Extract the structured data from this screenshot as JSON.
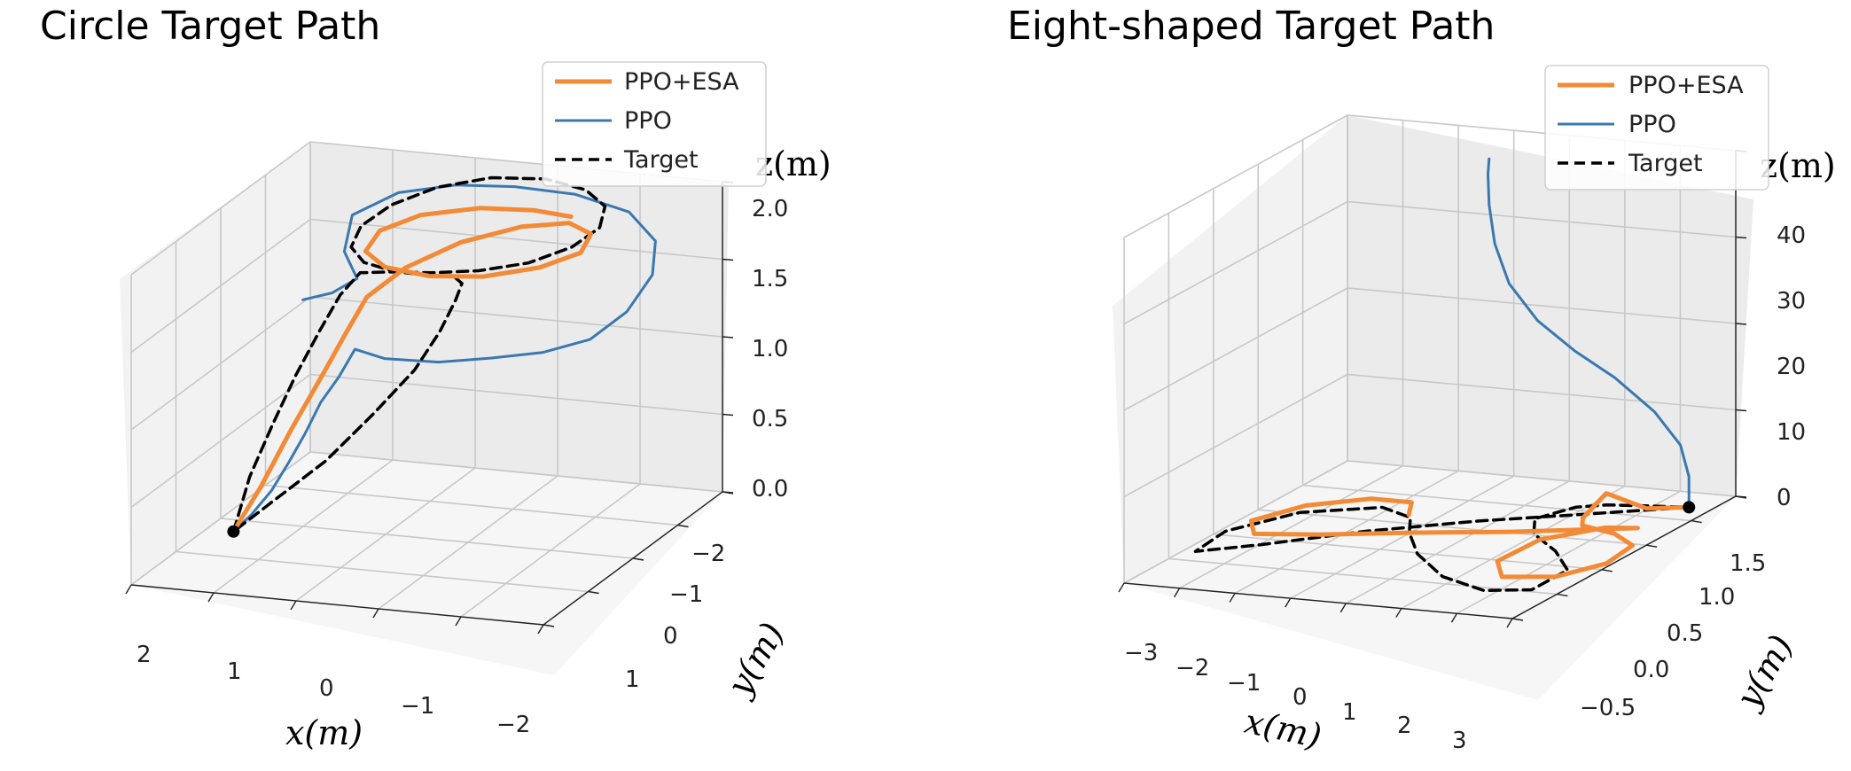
{
  "colors": {
    "ppo_esa": "#f28a36",
    "ppo": "#3a78b0",
    "target": "#000000",
    "pane_left": "#f2f2f2",
    "pane_right": "#ebebeb",
    "pane_floor": "#f6f6f6",
    "grid": "#c8c8c8"
  },
  "chart_data": [
    {
      "type": "line",
      "subtype": "3d-line",
      "title": "Circle Target Path",
      "xlabel": "x(m)",
      "ylabel": "y(m)",
      "zlabel": "z(m)",
      "x_ticks": [
        "2",
        "1",
        "0",
        "−1",
        "−2"
      ],
      "y_ticks": [
        "−2",
        "−1",
        "0",
        "1"
      ],
      "z_ticks": [
        "0.0",
        "0.5",
        "1.0",
        "1.5",
        "2.0"
      ],
      "xlim": [
        2.3,
        -2.3
      ],
      "ylim": [
        -2.2,
        1.6
      ],
      "zlim": [
        0.0,
        2.0
      ],
      "legend": {
        "position": "top-right",
        "entries": [
          "PPO+ESA",
          "PPO",
          "Target"
        ]
      },
      "grid": true,
      "start_point": {
        "x": 2.0,
        "y": 0.0,
        "z": 0.0
      },
      "series": [
        {
          "name": "PPO+ESA",
          "points": [
            [
              2.0,
              0.0,
              0.0
            ],
            [
              1.7,
              0.0,
              0.3
            ],
            [
              1.35,
              0.0,
              0.7
            ],
            [
              1.05,
              -0.1,
              1.05
            ],
            [
              0.85,
              -0.2,
              1.3
            ],
            [
              0.75,
              -0.45,
              1.48
            ],
            [
              0.55,
              -0.9,
              1.58
            ],
            [
              0.2,
              -1.4,
              1.65
            ],
            [
              -0.3,
              -1.75,
              1.7
            ],
            [
              -0.8,
              -1.8,
              1.74
            ],
            [
              -1.2,
              -1.5,
              1.76
            ],
            [
              -1.35,
              -1.0,
              1.76
            ],
            [
              -1.1,
              -0.6,
              1.74
            ],
            [
              -0.6,
              -0.35,
              1.71
            ],
            [
              0.0,
              -0.35,
              1.68
            ],
            [
              0.6,
              -0.55,
              1.66
            ],
            [
              1.0,
              -0.9,
              1.66
            ],
            [
              1.05,
              -1.3,
              1.7
            ],
            [
              0.75,
              -1.6,
              1.75
            ],
            [
              0.2,
              -1.8,
              1.78
            ],
            [
              -0.4,
              -1.8,
              1.8
            ],
            [
              -0.9,
              -1.65,
              1.82
            ]
          ]
        },
        {
          "name": "PPO",
          "points": [
            [
              2.0,
              0.0,
              0.0
            ],
            [
              1.8,
              0.0,
              0.12
            ],
            [
              1.55,
              0.05,
              0.3
            ],
            [
              1.35,
              0.05,
              0.5
            ],
            [
              1.15,
              0.1,
              0.7
            ],
            [
              1.0,
              0.05,
              0.9
            ],
            [
              0.85,
              -0.05,
              1.05
            ],
            [
              0.75,
              -0.2,
              1.2
            ],
            [
              0.5,
              -0.35,
              1.12
            ],
            [
              0.0,
              -0.55,
              1.08
            ],
            [
              -0.5,
              -0.7,
              1.1
            ],
            [
              -1.0,
              -0.85,
              1.13
            ],
            [
              -1.4,
              -1.1,
              1.18
            ],
            [
              -1.6,
              -1.5,
              1.28
            ],
            [
              -1.65,
              -1.95,
              1.42
            ],
            [
              -1.5,
              -2.3,
              1.55
            ],
            [
              -1.1,
              -2.5,
              1.67
            ],
            [
              -0.5,
              -2.5,
              1.75
            ],
            [
              0.1,
              -2.35,
              1.8
            ],
            [
              0.6,
              -2.05,
              1.85
            ],
            [
              1.0,
              -1.6,
              1.88
            ],
            [
              1.2,
              -1.0,
              1.86
            ],
            [
              1.0,
              -0.45,
              1.76
            ],
            [
              0.7,
              -0.15,
              1.67
            ],
            [
              0.9,
              0.0,
              1.6
            ],
            [
              1.2,
              0.05,
              1.55
            ]
          ]
        },
        {
          "name": "Target",
          "points": [
            [
              2.0,
              0.0,
              0.0
            ],
            [
              1.95,
              -0.25,
              0.3
            ],
            [
              1.8,
              -0.45,
              0.6
            ],
            [
              1.6,
              -0.55,
              0.9
            ],
            [
              1.35,
              -0.6,
              1.2
            ],
            [
              1.1,
              -0.55,
              1.45
            ],
            [
              0.85,
              -0.5,
              1.62
            ],
            [
              0.45,
              -0.45,
              1.66
            ],
            [
              0.0,
              -0.4,
              1.69
            ],
            [
              -0.5,
              -0.45,
              1.72
            ],
            [
              -0.95,
              -0.65,
              1.75
            ],
            [
              -1.25,
              -1.0,
              1.79
            ],
            [
              -1.35,
              -1.4,
              1.83
            ],
            [
              -1.2,
              -1.8,
              1.87
            ],
            [
              -0.85,
              -2.05,
              1.9
            ],
            [
              -0.35,
              -2.15,
              1.92
            ],
            [
              0.2,
              -2.05,
              1.92
            ],
            [
              0.65,
              -1.75,
              1.9
            ],
            [
              0.95,
              -1.35,
              1.86
            ],
            [
              1.05,
              -0.9,
              1.82
            ],
            [
              0.95,
              -0.5,
              1.78
            ],
            [
              0.7,
              -0.3,
              1.74
            ],
            [
              0.35,
              -0.3,
              1.7
            ],
            [
              0.05,
              -0.45,
              1.66
            ],
            [
              -0.1,
              -0.7,
              1.6
            ],
            [
              -0.05,
              -0.95,
              1.5
            ],
            [
              0.1,
              -1.1,
              1.35
            ],
            [
              0.25,
              -1.05,
              1.15
            ],
            [
              0.4,
              -0.8,
              0.95
            ],
            [
              0.7,
              -0.5,
              0.72
            ],
            [
              1.1,
              -0.25,
              0.45
            ],
            [
              1.6,
              -0.08,
              0.2
            ],
            [
              2.0,
              0.0,
              0.0
            ]
          ]
        }
      ]
    },
    {
      "type": "line",
      "subtype": "3d-line",
      "title": "Eight-shaped Target Path",
      "xlabel": "x(m)",
      "ylabel": "y(m)",
      "zlabel": "z(m)",
      "x_ticks": [
        "−3",
        "−2",
        "−1",
        "0",
        "1",
        "2",
        "3"
      ],
      "y_ticks": [
        "1.5",
        "1.0",
        "0.5",
        "0.0",
        "−0.5"
      ],
      "z_ticks": [
        "0",
        "10",
        "20",
        "30",
        "40"
      ],
      "xlim": [
        -3.4,
        3.4
      ],
      "ylim": [
        1.9,
        -0.9
      ],
      "zlim": [
        0,
        45
      ],
      "legend": {
        "position": "top-right",
        "entries": [
          "PPO+ESA",
          "PPO",
          "Target"
        ]
      },
      "grid": true,
      "start_point": {
        "x": 3.0,
        "y": 1.6,
        "z": 0
      },
      "series": [
        {
          "name": "PPO+ESA",
          "points": [
            [
              3.0,
              1.6,
              0
            ],
            [
              2.4,
              1.5,
              0
            ],
            [
              1.9,
              1.35,
              2.5
            ],
            [
              1.7,
              1.2,
              0
            ],
            [
              1.9,
              1.05,
              0
            ],
            [
              2.6,
              0.95,
              0
            ],
            [
              3.2,
              0.75,
              0
            ],
            [
              3.3,
              0.35,
              0
            ],
            [
              2.9,
              0.0,
              0
            ],
            [
              2.1,
              -0.1,
              0
            ],
            [
              1.6,
              0.2,
              0
            ],
            [
              1.65,
              0.7,
              0
            ],
            [
              2.3,
              1.05,
              0
            ],
            [
              2.8,
              1.1,
              0
            ],
            [
              2.2,
              1.0,
              0
            ],
            [
              1.0,
              0.8,
              0
            ],
            [
              -0.5,
              0.6,
              0
            ],
            [
              -1.8,
              0.4,
              0
            ],
            [
              -2.8,
              0.3,
              0
            ],
            [
              -3.2,
              0.55,
              0
            ],
            [
              -2.8,
              0.95,
              0
            ],
            [
              -2.0,
              1.2,
              0
            ],
            [
              -1.3,
              1.2,
              0
            ],
            [
              -1.0,
              0.95,
              0
            ]
          ]
        },
        {
          "name": "PPO",
          "points": [
            [
              3.0,
              1.6,
              0
            ],
            [
              3.0,
              1.6,
              4
            ],
            [
              2.85,
              1.6,
              8
            ],
            [
              2.4,
              1.6,
              12
            ],
            [
              1.7,
              1.6,
              16
            ],
            [
              1.0,
              1.6,
              19
            ],
            [
              0.35,
              1.6,
              22.5
            ],
            [
              -0.15,
              1.6,
              27
            ],
            [
              -0.4,
              1.6,
              32
            ],
            [
              -0.5,
              1.6,
              37
            ],
            [
              -0.52,
              1.6,
              41
            ],
            [
              -0.5,
              1.6,
              43
            ]
          ]
        },
        {
          "name": "Target",
          "points": [
            [
              3.0,
              1.6,
              0
            ],
            [
              1.5,
              1.25,
              0
            ],
            [
              0.2,
              0.95,
              0
            ],
            [
              -1.2,
              0.55,
              0
            ],
            [
              -2.4,
              0.1,
              0
            ],
            [
              -3.2,
              -0.15,
              0
            ],
            [
              -3.3,
              0.3,
              0
            ],
            [
              -2.7,
              0.8,
              0
            ],
            [
              -1.6,
              1.05,
              0
            ],
            [
              -0.9,
              0.9,
              0
            ],
            [
              -0.5,
              0.6,
              0
            ],
            [
              0.2,
              0.2,
              0
            ],
            [
              1.2,
              -0.2,
              0
            ],
            [
              2.2,
              -0.4,
              0
            ],
            [
              2.9,
              -0.3,
              0
            ],
            [
              2.9,
              0.15,
              0
            ],
            [
              2.2,
              0.5,
              0
            ],
            [
              1.4,
              0.8,
              0
            ],
            [
              1.0,
              1.1,
              0
            ],
            [
              1.3,
              1.4,
              0
            ],
            [
              1.7,
              1.5,
              0
            ],
            [
              2.3,
              1.55,
              0
            ],
            [
              3.0,
              1.6,
              0
            ]
          ]
        }
      ]
    }
  ]
}
